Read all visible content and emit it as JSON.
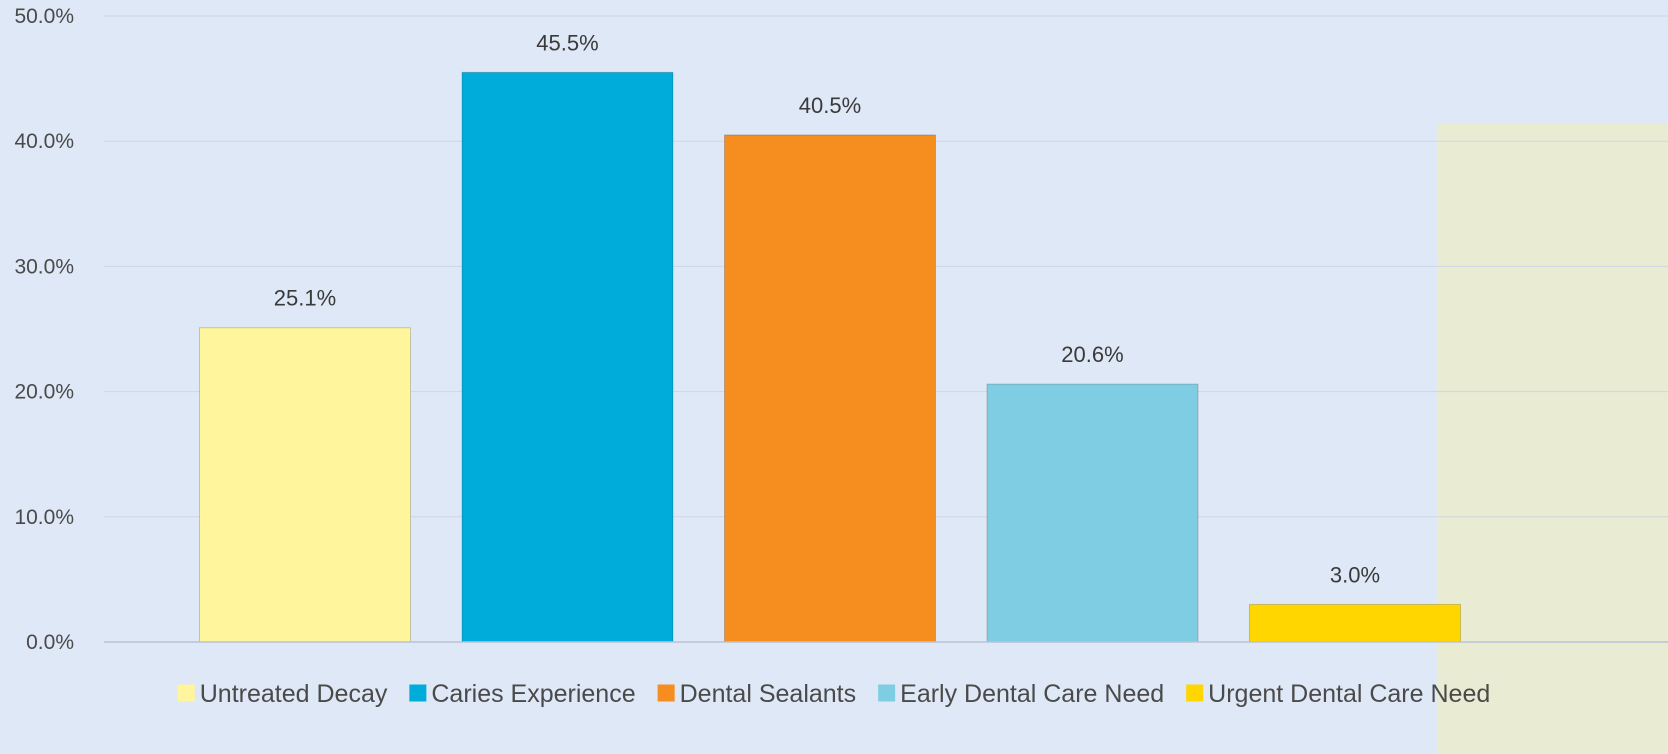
{
  "chart_data": {
    "type": "bar",
    "title": "",
    "xlabel": "",
    "ylabel": "",
    "ylim": [
      0,
      50
    ],
    "y_ticks": [
      "0.0%",
      "10.0%",
      "20.0%",
      "30.0%",
      "40.0%",
      "50.0%"
    ],
    "grid": true,
    "legend_position": "bottom",
    "categories": [
      "Untreated Decay",
      "Caries Experience",
      "Dental Sealants",
      "Early Dental Care Need",
      "Urgent Dental Care Need"
    ],
    "values": [
      25.1,
      45.5,
      40.5,
      20.6,
      3.0
    ],
    "data_labels": [
      "25.1%",
      "45.5%",
      "40.5%",
      "20.6%",
      "3.0%"
    ],
    "colors": [
      "#fff59d",
      "#00acd9",
      "#f68d1f",
      "#7fcde2",
      "#ffd600"
    ],
    "background_color": "#dfe8f6",
    "highlight_band_color": "#e9ecd2"
  }
}
